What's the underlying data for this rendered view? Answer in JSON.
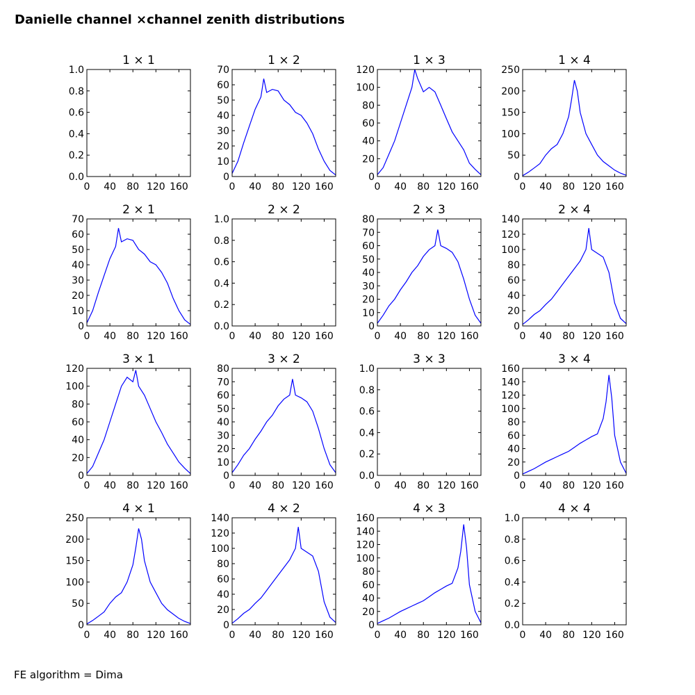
{
  "figure": {
    "title": "Danielle channel ×channel zenith distributions",
    "footer": "FE algorithm = Dima"
  },
  "style": {
    "line_color": "#0000ff",
    "axis_color": "#000000",
    "background": "#ffffff"
  },
  "chart_data": [
    {
      "type": "line",
      "title": "1 × 1",
      "empty": true,
      "x_ticks": [
        0,
        40,
        80,
        120,
        160
      ],
      "y_ticks": [
        "0.0",
        "0.2",
        "0.4",
        "0.6",
        "0.8",
        "1.0"
      ],
      "xlim": [
        0,
        180
      ],
      "ylim": [
        0,
        1
      ],
      "grid": false,
      "x": [],
      "y": []
    },
    {
      "type": "line",
      "title": "1 × 2",
      "empty": false,
      "x_ticks": [
        0,
        40,
        80,
        120,
        160
      ],
      "y_ticks": [
        "0",
        "10",
        "20",
        "30",
        "40",
        "50",
        "60",
        "70"
      ],
      "xlim": [
        0,
        180
      ],
      "ylim": [
        0,
        70
      ],
      "grid": false,
      "x": [
        0,
        10,
        20,
        30,
        40,
        50,
        55,
        60,
        70,
        80,
        90,
        100,
        110,
        120,
        130,
        140,
        150,
        160,
        170,
        180
      ],
      "y": [
        2,
        10,
        22,
        33,
        44,
        52,
        64,
        55,
        57,
        56,
        50,
        47,
        42,
        40,
        35,
        28,
        18,
        10,
        4,
        1
      ]
    },
    {
      "type": "line",
      "title": "1 × 3",
      "empty": false,
      "x_ticks": [
        0,
        40,
        80,
        120,
        160
      ],
      "y_ticks": [
        "0",
        "20",
        "40",
        "60",
        "80",
        "100",
        "120"
      ],
      "xlim": [
        0,
        180
      ],
      "ylim": [
        0,
        120
      ],
      "grid": false,
      "x": [
        0,
        10,
        20,
        30,
        40,
        50,
        60,
        65,
        70,
        80,
        90,
        100,
        110,
        120,
        130,
        140,
        150,
        160,
        170,
        180
      ],
      "y": [
        2,
        10,
        25,
        40,
        60,
        80,
        100,
        120,
        110,
        95,
        100,
        95,
        80,
        65,
        50,
        40,
        30,
        15,
        8,
        2
      ]
    },
    {
      "type": "line",
      "title": "1 × 4",
      "empty": false,
      "x_ticks": [
        0,
        40,
        80,
        120,
        160
      ],
      "y_ticks": [
        "0",
        "50",
        "100",
        "150",
        "200",
        "250"
      ],
      "xlim": [
        0,
        180
      ],
      "ylim": [
        0,
        250
      ],
      "grid": false,
      "x": [
        0,
        10,
        20,
        30,
        40,
        50,
        60,
        70,
        80,
        85,
        90,
        95,
        100,
        110,
        120,
        130,
        140,
        150,
        160,
        170,
        180
      ],
      "y": [
        2,
        10,
        20,
        30,
        50,
        65,
        75,
        100,
        140,
        180,
        225,
        200,
        150,
        100,
        75,
        50,
        35,
        25,
        15,
        8,
        3
      ]
    },
    {
      "type": "line",
      "title": "2 × 1",
      "empty": false,
      "x_ticks": [
        0,
        40,
        80,
        120,
        160
      ],
      "y_ticks": [
        "0",
        "10",
        "20",
        "30",
        "40",
        "50",
        "60",
        "70"
      ],
      "xlim": [
        0,
        180
      ],
      "ylim": [
        0,
        70
      ],
      "grid": false,
      "x": [
        0,
        10,
        20,
        30,
        40,
        50,
        55,
        60,
        70,
        80,
        90,
        100,
        110,
        120,
        130,
        140,
        150,
        160,
        170,
        180
      ],
      "y": [
        2,
        10,
        22,
        33,
        44,
        52,
        64,
        55,
        57,
        56,
        50,
        47,
        42,
        40,
        35,
        28,
        18,
        10,
        4,
        1
      ]
    },
    {
      "type": "line",
      "title": "2 × 2",
      "empty": true,
      "x_ticks": [
        0,
        40,
        80,
        120,
        160
      ],
      "y_ticks": [
        "0.0",
        "0.2",
        "0.4",
        "0.6",
        "0.8",
        "1.0"
      ],
      "xlim": [
        0,
        180
      ],
      "ylim": [
        0,
        1
      ],
      "grid": false,
      "x": [],
      "y": []
    },
    {
      "type": "line",
      "title": "2 × 3",
      "empty": false,
      "x_ticks": [
        0,
        40,
        80,
        120,
        160
      ],
      "y_ticks": [
        "0",
        "10",
        "20",
        "30",
        "40",
        "50",
        "60",
        "70",
        "80"
      ],
      "xlim": [
        0,
        180
      ],
      "ylim": [
        0,
        80
      ],
      "grid": false,
      "x": [
        0,
        10,
        20,
        30,
        40,
        50,
        60,
        70,
        80,
        90,
        100,
        105,
        110,
        120,
        130,
        140,
        150,
        160,
        170,
        180
      ],
      "y": [
        2,
        8,
        15,
        20,
        27,
        33,
        40,
        45,
        52,
        57,
        60,
        72,
        60,
        58,
        55,
        48,
        35,
        20,
        8,
        2
      ]
    },
    {
      "type": "line",
      "title": "2 × 4",
      "empty": false,
      "x_ticks": [
        0,
        40,
        80,
        120,
        160
      ],
      "y_ticks": [
        "0",
        "20",
        "40",
        "60",
        "80",
        "100",
        "120",
        "140"
      ],
      "xlim": [
        0,
        180
      ],
      "ylim": [
        0,
        140
      ],
      "grid": false,
      "x": [
        0,
        10,
        20,
        30,
        40,
        50,
        60,
        70,
        80,
        90,
        100,
        110,
        115,
        120,
        130,
        140,
        150,
        160,
        170,
        180
      ],
      "y": [
        2,
        8,
        15,
        20,
        28,
        35,
        45,
        55,
        65,
        75,
        85,
        100,
        128,
        100,
        95,
        90,
        70,
        30,
        10,
        3
      ]
    },
    {
      "type": "line",
      "title": "3 × 1",
      "empty": false,
      "x_ticks": [
        0,
        40,
        80,
        120,
        160
      ],
      "y_ticks": [
        "0",
        "20",
        "40",
        "60",
        "80",
        "100",
        "120"
      ],
      "xlim": [
        0,
        180
      ],
      "ylim": [
        0,
        120
      ],
      "grid": false,
      "x": [
        0,
        10,
        20,
        30,
        40,
        50,
        60,
        70,
        80,
        85,
        90,
        100,
        110,
        120,
        130,
        140,
        150,
        160,
        170,
        180
      ],
      "y": [
        2,
        10,
        25,
        40,
        60,
        80,
        100,
        110,
        105,
        118,
        100,
        90,
        75,
        60,
        48,
        35,
        25,
        15,
        8,
        2
      ]
    },
    {
      "type": "line",
      "title": "3 × 2",
      "empty": false,
      "x_ticks": [
        0,
        40,
        80,
        120,
        160
      ],
      "y_ticks": [
        "0",
        "10",
        "20",
        "30",
        "40",
        "50",
        "60",
        "70",
        "80"
      ],
      "xlim": [
        0,
        180
      ],
      "ylim": [
        0,
        80
      ],
      "grid": false,
      "x": [
        0,
        10,
        20,
        30,
        40,
        50,
        60,
        70,
        80,
        90,
        100,
        105,
        110,
        120,
        130,
        140,
        150,
        160,
        170,
        180
      ],
      "y": [
        2,
        8,
        15,
        20,
        27,
        33,
        40,
        45,
        52,
        57,
        60,
        72,
        60,
        58,
        55,
        48,
        35,
        20,
        8,
        2
      ]
    },
    {
      "type": "line",
      "title": "3 × 3",
      "empty": true,
      "x_ticks": [
        0,
        40,
        80,
        120,
        160
      ],
      "y_ticks": [
        "0.0",
        "0.2",
        "0.4",
        "0.6",
        "0.8",
        "1.0"
      ],
      "xlim": [
        0,
        180
      ],
      "ylim": [
        0,
        1
      ],
      "grid": false,
      "x": [],
      "y": []
    },
    {
      "type": "line",
      "title": "3 × 4",
      "empty": false,
      "x_ticks": [
        0,
        40,
        80,
        120,
        160
      ],
      "y_ticks": [
        "0",
        "20",
        "40",
        "60",
        "80",
        "100",
        "120",
        "140",
        "160"
      ],
      "xlim": [
        0,
        180
      ],
      "ylim": [
        0,
        160
      ],
      "grid": false,
      "x": [
        0,
        10,
        20,
        30,
        40,
        50,
        60,
        70,
        80,
        90,
        100,
        110,
        120,
        130,
        140,
        145,
        150,
        155,
        160,
        170,
        180
      ],
      "y": [
        2,
        6,
        10,
        15,
        20,
        24,
        28,
        32,
        36,
        42,
        48,
        53,
        58,
        62,
        85,
        110,
        150,
        115,
        60,
        20,
        3
      ]
    },
    {
      "type": "line",
      "title": "4 × 1",
      "empty": false,
      "x_ticks": [
        0,
        40,
        80,
        120,
        160
      ],
      "y_ticks": [
        "0",
        "50",
        "100",
        "150",
        "200",
        "250"
      ],
      "xlim": [
        0,
        180
      ],
      "ylim": [
        0,
        250
      ],
      "grid": false,
      "x": [
        0,
        10,
        20,
        30,
        40,
        50,
        60,
        70,
        80,
        85,
        90,
        95,
        100,
        110,
        120,
        130,
        140,
        150,
        160,
        170,
        180
      ],
      "y": [
        2,
        10,
        20,
        30,
        50,
        65,
        75,
        100,
        140,
        180,
        225,
        200,
        150,
        100,
        75,
        50,
        35,
        25,
        15,
        8,
        3
      ]
    },
    {
      "type": "line",
      "title": "4 × 2",
      "empty": false,
      "x_ticks": [
        0,
        40,
        80,
        120,
        160
      ],
      "y_ticks": [
        "0",
        "20",
        "40",
        "60",
        "80",
        "100",
        "120",
        "140"
      ],
      "xlim": [
        0,
        180
      ],
      "ylim": [
        0,
        140
      ],
      "grid": false,
      "x": [
        0,
        10,
        20,
        30,
        40,
        50,
        60,
        70,
        80,
        90,
        100,
        110,
        115,
        120,
        130,
        140,
        150,
        160,
        170,
        180
      ],
      "y": [
        2,
        8,
        15,
        20,
        28,
        35,
        45,
        55,
        65,
        75,
        85,
        100,
        128,
        100,
        95,
        90,
        70,
        30,
        10,
        3
      ]
    },
    {
      "type": "line",
      "title": "4 × 3",
      "empty": false,
      "x_ticks": [
        0,
        40,
        80,
        120,
        160
      ],
      "y_ticks": [
        "0",
        "20",
        "40",
        "60",
        "80",
        "100",
        "120",
        "140",
        "160"
      ],
      "xlim": [
        0,
        180
      ],
      "ylim": [
        0,
        160
      ],
      "grid": false,
      "x": [
        0,
        10,
        20,
        30,
        40,
        50,
        60,
        70,
        80,
        90,
        100,
        110,
        120,
        130,
        140,
        145,
        150,
        155,
        160,
        170,
        180
      ],
      "y": [
        2,
        6,
        10,
        15,
        20,
        24,
        28,
        32,
        36,
        42,
        48,
        53,
        58,
        62,
        85,
        110,
        150,
        115,
        60,
        20,
        3
      ]
    },
    {
      "type": "line",
      "title": "4 × 4",
      "empty": true,
      "x_ticks": [
        0,
        40,
        80,
        120,
        160
      ],
      "y_ticks": [
        "0.0",
        "0.2",
        "0.4",
        "0.6",
        "0.8",
        "1.0"
      ],
      "xlim": [
        0,
        180
      ],
      "ylim": [
        0,
        1
      ],
      "grid": false,
      "x": [],
      "y": []
    }
  ]
}
